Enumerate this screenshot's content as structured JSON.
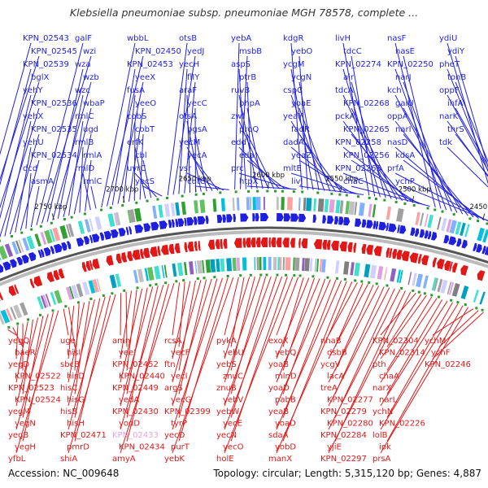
{
  "title": "Klebsiella pneumoniae subsp. pneumoniae MGH 78578, complete ...",
  "footer": {
    "accession": "Accession: NC_009648",
    "summary": "Topology: circular; Length: 5,315,120 bp; Genes: 4,887"
  },
  "colors": {
    "forward": "#1f1fe0",
    "reverse": "#e01818",
    "highlight": "#e8a0e0",
    "backbone": "#888888"
  },
  "kbp_ticks": [
    "2400 kbp",
    "2450 kbp",
    "2500 kbp",
    "2550 kbp",
    "2600 kbp",
    "2650 kbp",
    "2700 kbp",
    "2750 kbp",
    "2800 kbp"
  ],
  "forward_genes": [
    "KPN_02543",
    "KPN_02545",
    "KPN_02539",
    "bglX",
    "yehY",
    "KPN_02536",
    "yehX",
    "KPN_02535",
    "yehU",
    "KPN_02534",
    "dcd",
    "asmA",
    "galF",
    "wzi",
    "wza",
    "wzb",
    "wzc",
    "wbaP",
    "rmlC",
    "ugd",
    "rmlB",
    "rmlA",
    "rmlD",
    "rmlC",
    "wbbL",
    "KPN_02450",
    "KPN_02453",
    "yeeX",
    "fusA",
    "yeeO",
    "cobS",
    "cobT",
    "erfK",
    "cbl",
    "uvrC",
    "yecS",
    "otsB",
    "yedJ",
    "yecH",
    "flIY",
    "araF",
    "yecC",
    "otsA",
    "pgsA",
    "yecM",
    "yecA",
    "vsr",
    "cutC",
    "yebA",
    "msbB",
    "aspS",
    "ptrB",
    "ruvB",
    "phpA",
    "zwf",
    "proQ",
    "edd",
    "eda",
    "prc",
    "htpX",
    "kdgR",
    "yebO",
    "ycgM",
    "ycgN",
    "cspC",
    "yoaE",
    "yeaY",
    "fadR",
    "dadA",
    "yeaZ",
    "mltE",
    "livJ",
    "livH",
    "tdcC",
    "KPN_02274",
    "air",
    "tdcA",
    "KPN_02268",
    "pckA",
    "KPN_02265",
    "KPN_02258",
    "KPN_02256",
    "KPN_02263",
    "chaC",
    "nasF",
    "nasE",
    "KPN_02250",
    "narJ",
    "kch",
    "galU",
    "oppA",
    "narI",
    "nasD",
    "kdsA",
    "prfA",
    "ychP",
    "ydiU",
    "ydiY",
    "pheT",
    "tonB",
    "oppF",
    "ihfA",
    "narK",
    "thrS",
    "tdk"
  ],
  "reverse_genes": [
    "yegQ",
    "baeR",
    "yegD",
    "KPN_02522",
    "KPN_02523",
    "KPN_02524",
    "yegM",
    "yegN",
    "yegB",
    "yegH",
    "yfbL",
    "uge",
    "hisI",
    "sbcB",
    "hisD",
    "hisC",
    "hisG",
    "hisB",
    "hisH",
    "KPN_02471",
    "pmrD",
    "shiA",
    "amn",
    "yeeI",
    "KPN_02452",
    "KPN_02440",
    "KPN_02449",
    "yedA",
    "KPN_02430",
    "yodD",
    "KPN_02433",
    "KPN_02434",
    "amyA",
    "rcsA",
    "yecF",
    "ftn",
    "yecI",
    "argS",
    "yecG",
    "KPN_02399",
    "tyrP",
    "yecD",
    "purT",
    "yebK",
    "pykA",
    "yebU",
    "yebS",
    "znuC",
    "znuB",
    "yebV",
    "yebW",
    "yecE",
    "yecN",
    "yecO",
    "holE",
    "exoX",
    "yebQ",
    "yoaB",
    "mlnD",
    "yoaD",
    "pabB",
    "yeaB",
    "yoaD",
    "sdaA",
    "yobD",
    "manX",
    "nhaB",
    "dsbB",
    "ycgV",
    "lacA",
    "treA",
    "KPN_02277",
    "KPN_02279",
    "KPN_02280",
    "KPN_02284",
    "yjiE",
    "KPN_02297",
    "KPN_02304",
    "KPN_02314",
    "pth",
    "chaA",
    "narX",
    "narL",
    "ychN",
    "KPN_02226",
    "lolB",
    "ipk",
    "prsA",
    "ychM",
    "ychF",
    "KPN_02246"
  ]
}
